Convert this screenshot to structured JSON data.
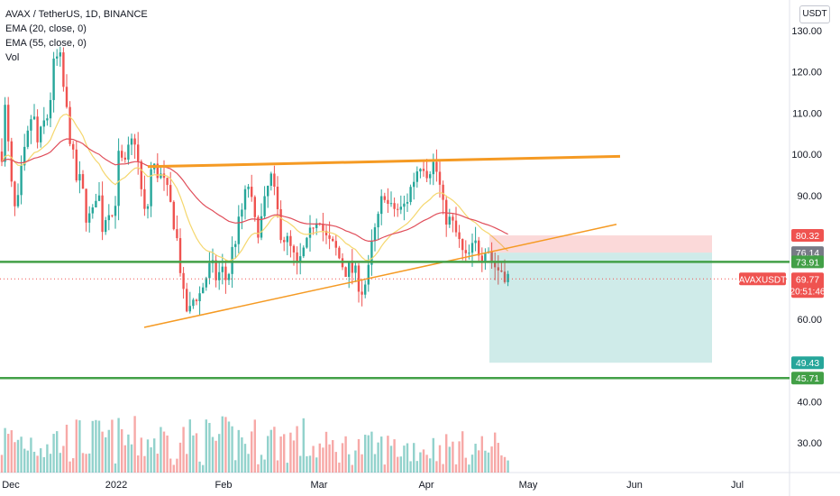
{
  "legend": {
    "title": "AVAX / TetherUS, 1D, BINANCE",
    "ema20": "EMA (20, close, 0)",
    "ema55": "EMA (55, close, 0)",
    "vol": "Vol"
  },
  "currency_button": "USDT",
  "chart_data": {
    "type": "candlestick",
    "symbol": "AVAXUSDT",
    "y_axis": {
      "ticks": [
        "130.00",
        "120.00",
        "110.00",
        "100.00",
        "90.00",
        "80.00",
        "60.00",
        "40.00",
        "30.00"
      ],
      "range": [
        25,
        135
      ]
    },
    "x_axis": {
      "ticks": [
        "Dec",
        "2022",
        "Feb",
        "Mar",
        "Apr",
        "May",
        "Jun",
        "Jul"
      ]
    },
    "price_labels": [
      {
        "text": "80.32",
        "value": 80.32,
        "color": "#ef5350"
      },
      {
        "text": "76.14",
        "value": 76.14,
        "color": "#787b86"
      },
      {
        "text": "73.91",
        "value": 73.91,
        "color": "#43a047"
      },
      {
        "text": "49.43",
        "value": 49.43,
        "color": "#26a69a"
      },
      {
        "text": "45.71",
        "value": 45.71,
        "color": "#43a047"
      }
    ],
    "current": {
      "symbol": "AVAXUSDT",
      "price": "69.77",
      "countdown": "20:51:46",
      "color": "#ef5350"
    },
    "horizontal_lines": [
      73.91,
      45.71
    ],
    "trade_box": {
      "entry": 76.14,
      "stop": 80.32,
      "target": 49.43
    },
    "colors": {
      "up": "#26a69a",
      "down": "#ef5350",
      "ema20": "#f5d76e",
      "ema55": "#e04e5a",
      "trend": "#f59a23",
      "support": "#43a047"
    }
  }
}
